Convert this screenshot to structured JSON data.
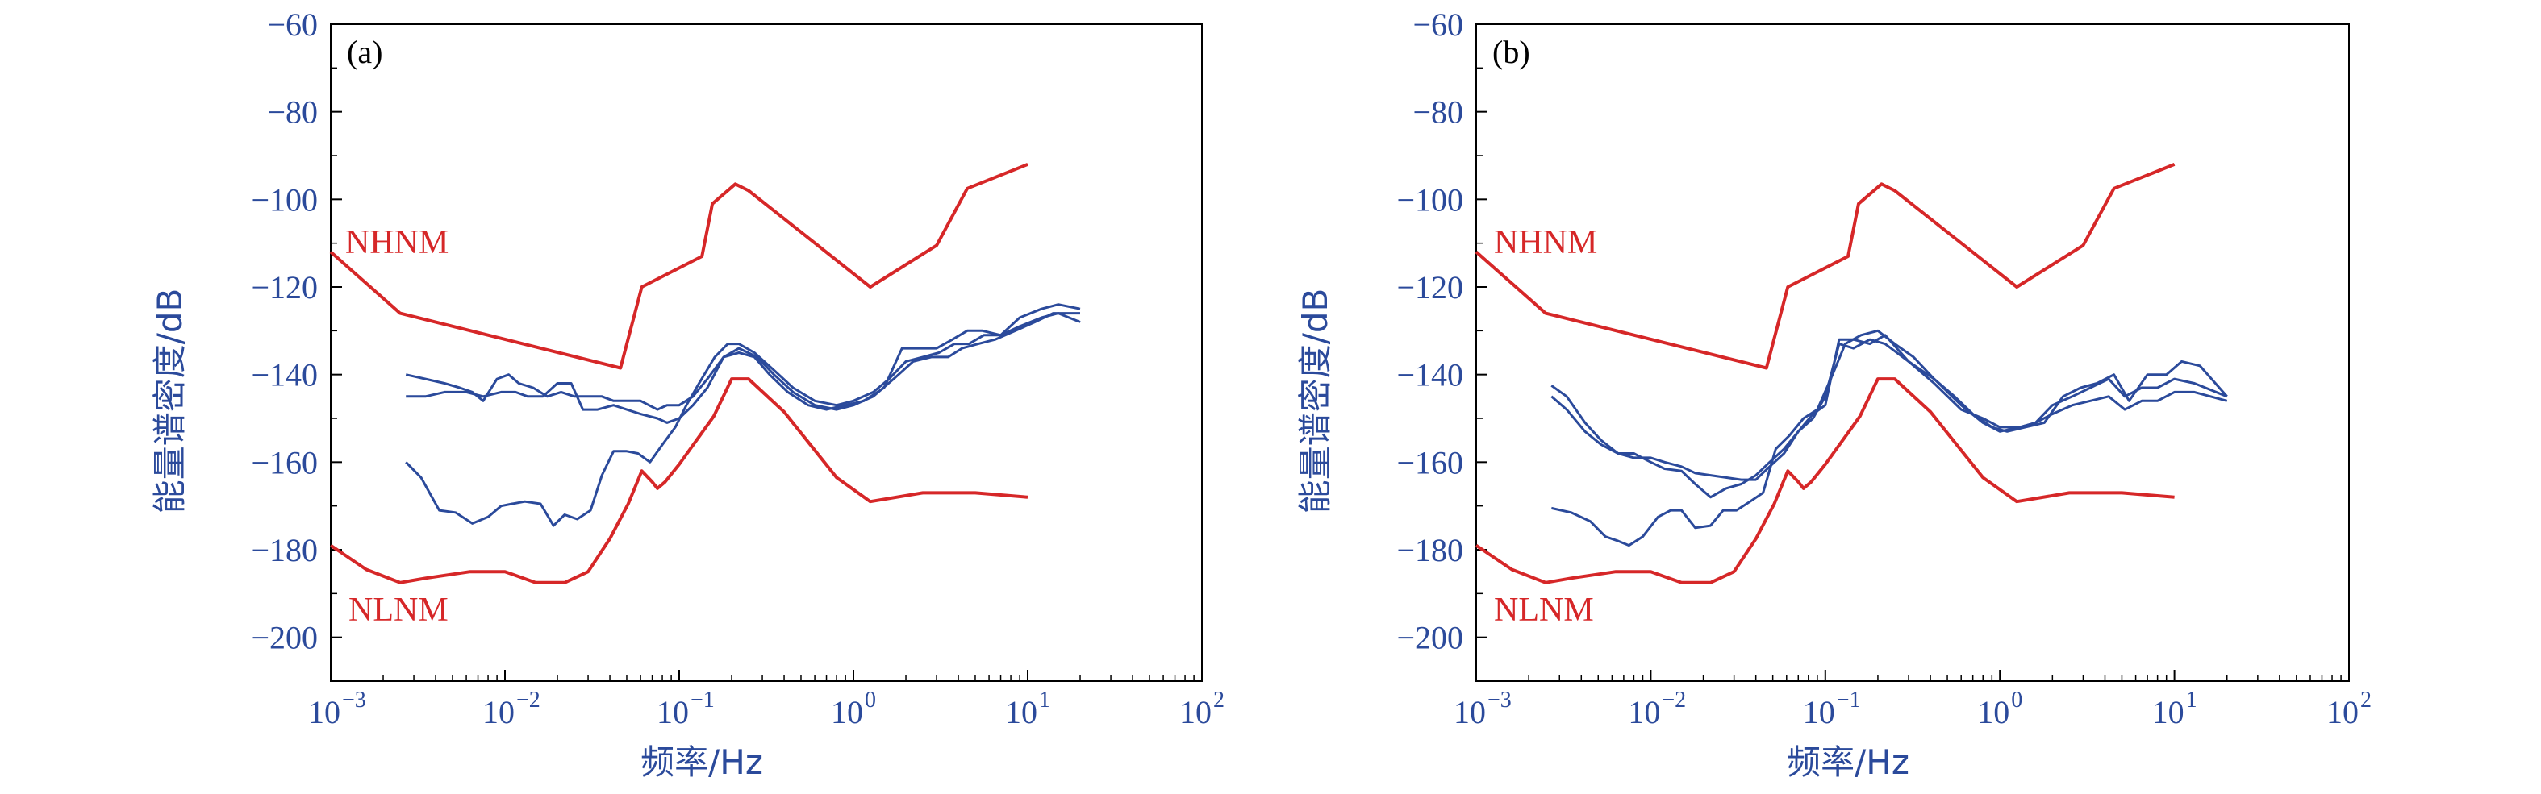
{
  "colors": {
    "model": "#d62728",
    "data": "#2b4a9b",
    "axis_text": "#2b4a9b"
  },
  "chart_data": [
    {
      "type": "line",
      "panel_label": "(a)",
      "xlabel": "频率/Hz",
      "ylabel": "能量谱密度/dB",
      "xscale": "log",
      "xlim": [
        0.001,
        100
      ],
      "ylim": [
        -210,
        -60
      ],
      "yticks": [
        "−60",
        "−80",
        "−100",
        "−120",
        "−140",
        "−160",
        "−180",
        "−200"
      ],
      "xticks": [
        {
          "base": "10",
          "exp": "−3"
        },
        {
          "base": "10",
          "exp": "−2"
        },
        {
          "base": "10",
          "exp": "−1"
        },
        {
          "base": "10",
          "exp": "0"
        },
        {
          "base": "10",
          "exp": "1"
        },
        {
          "base": "10",
          "exp": "2"
        }
      ],
      "grid": false,
      "models": [
        {
          "name": "NHNM",
          "x": [
            0.001,
            0.0025,
            0.046,
            0.061,
            0.135,
            0.155,
            0.21,
            0.25,
            1.25,
            3.0,
            4.5,
            10
          ],
          "y": [
            -112,
            -126,
            -138.5,
            -120,
            -113,
            -101,
            -96.5,
            -98,
            -120,
            -110.5,
            -97.5,
            -92
          ]
        },
        {
          "name": "NLNM",
          "x": [
            0.001,
            0.0016,
            0.0025,
            0.0035,
            0.0063,
            0.01,
            0.015,
            0.022,
            0.03,
            0.04,
            0.051,
            0.061,
            0.07,
            0.075,
            0.083,
            0.1,
            0.158,
            0.2,
            0.25,
            0.4,
            0.8,
            1.25,
            2.5,
            5,
            10
          ],
          "y": [
            -179,
            -184.5,
            -187.5,
            -186.5,
            -185,
            -185,
            -187.5,
            -187.5,
            -185,
            -177.5,
            -169.5,
            -162,
            -164.5,
            -166,
            -164.5,
            -160.5,
            -149.5,
            -141,
            -141,
            -148.5,
            -163.5,
            -169,
            -167,
            -167,
            -168
          ]
        }
      ],
      "series": [
        {
          "x": [
            0.0027,
            0.0035,
            0.0045,
            0.006,
            0.0075,
            0.0095,
            0.0115,
            0.0135,
            0.0165,
            0.02,
            0.024,
            0.028,
            0.034,
            0.042,
            0.05,
            0.06,
            0.075,
            0.085,
            0.1,
            0.12,
            0.145,
            0.18,
            0.22,
            0.27,
            0.33,
            0.42,
            0.55,
            0.7,
            0.9,
            1.15,
            1.5,
            1.9,
            2.4,
            3.0,
            3.7,
            4.5,
            5.5,
            7,
            9,
            12,
            15,
            20
          ],
          "y": [
            -145,
            -145,
            -144,
            -144,
            -145,
            -144,
            -144,
            -145,
            -145,
            -142,
            -142,
            -148,
            -148,
            -147,
            -148,
            -149,
            -150,
            -151,
            -150,
            -147,
            -143,
            -136,
            -135,
            -136,
            -140,
            -144,
            -147,
            -148,
            -147,
            -146,
            -143,
            -134,
            -134,
            -134,
            -132,
            -130,
            -130,
            -131,
            -127,
            -125,
            -124,
            -125
          ]
        },
        {
          "x": [
            0.0027,
            0.0035,
            0.0045,
            0.0055,
            0.0065,
            0.0075,
            0.009,
            0.0105,
            0.012,
            0.0145,
            0.0175,
            0.021,
            0.025,
            0.03,
            0.036,
            0.042,
            0.05,
            0.06,
            0.075,
            0.085,
            0.1,
            0.12,
            0.145,
            0.18,
            0.22,
            0.28,
            0.35,
            0.45,
            0.6,
            0.8,
            1.0,
            1.3,
            1.7,
            2.2,
            2.8,
            3.5,
            4.2,
            5.2,
            6.5,
            8.5,
            11,
            14,
            20
          ],
          "y": [
            -140,
            -141,
            -142,
            -143,
            -144,
            -146,
            -141,
            -140,
            -142,
            -143,
            -145,
            -144,
            -145,
            -145,
            -145,
            -146,
            -146,
            -146,
            -148,
            -147,
            -147,
            -145,
            -141,
            -136,
            -134,
            -136,
            -140,
            -144,
            -147,
            -148,
            -147,
            -145,
            -141,
            -137,
            -136,
            -136,
            -134,
            -133,
            -132,
            -130,
            -128,
            -126,
            -126
          ]
        },
        {
          "x": [
            0.0027,
            0.0033,
            0.0042,
            0.0052,
            0.0065,
            0.008,
            0.0095,
            0.011,
            0.013,
            0.016,
            0.019,
            0.022,
            0.026,
            0.031,
            0.036,
            0.042,
            0.05,
            0.058,
            0.068,
            0.08,
            0.095,
            0.11,
            0.13,
            0.16,
            0.19,
            0.22,
            0.27,
            0.35,
            0.45,
            0.6,
            0.8,
            1.0,
            1.3,
            1.6,
            2.0,
            2.5,
            3.1,
            3.8,
            4.6,
            5.6,
            7,
            9,
            12,
            15,
            20
          ],
          "y": [
            -160,
            -163.5,
            -171,
            -171.5,
            -174,
            -172.5,
            -170,
            -169.5,
            -169,
            -169.5,
            -174.5,
            -172,
            -173,
            -171,
            -163,
            -157.5,
            -157.5,
            -158,
            -160,
            -156,
            -152,
            -147,
            -142,
            -136,
            -133,
            -133,
            -135,
            -139,
            -143,
            -146,
            -147,
            -146,
            -144,
            -141,
            -137,
            -136,
            -135,
            -133,
            -133,
            -131,
            -131,
            -129,
            -127,
            -126,
            -128
          ]
        }
      ]
    },
    {
      "type": "line",
      "panel_label": "(b)",
      "xlabel": "频率/Hz",
      "ylabel": "能量谱密度/dB",
      "xscale": "log",
      "xlim": [
        0.001,
        100
      ],
      "ylim": [
        -210,
        -60
      ],
      "yticks": [
        "−60",
        "−80",
        "−100",
        "−120",
        "−140",
        "−160",
        "−180",
        "−200"
      ],
      "xticks": [
        {
          "base": "10",
          "exp": "−3"
        },
        {
          "base": "10",
          "exp": "−2"
        },
        {
          "base": "10",
          "exp": "−1"
        },
        {
          "base": "10",
          "exp": "0"
        },
        {
          "base": "10",
          "exp": "1"
        },
        {
          "base": "10",
          "exp": "2"
        }
      ],
      "grid": false,
      "models": [
        {
          "name": "NHNM",
          "x": [
            0.001,
            0.0025,
            0.046,
            0.061,
            0.135,
            0.155,
            0.21,
            0.25,
            1.25,
            3.0,
            4.5,
            10
          ],
          "y": [
            -112,
            -126,
            -138.5,
            -120,
            -113,
            -101,
            -96.5,
            -98,
            -120,
            -110.5,
            -97.5,
            -92
          ]
        },
        {
          "name": "NLNM",
          "x": [
            0.001,
            0.0016,
            0.0025,
            0.0035,
            0.0063,
            0.01,
            0.015,
            0.022,
            0.03,
            0.04,
            0.051,
            0.061,
            0.07,
            0.075,
            0.083,
            0.1,
            0.158,
            0.2,
            0.25,
            0.4,
            0.8,
            1.25,
            2.5,
            5,
            10
          ],
          "y": [
            -179,
            -184.5,
            -187.5,
            -186.5,
            -185,
            -185,
            -187.5,
            -187.5,
            -185,
            -177.5,
            -169.5,
            -162,
            -164.5,
            -166,
            -164.5,
            -160.5,
            -149.5,
            -141,
            -141,
            -148.5,
            -163.5,
            -169,
            -167,
            -167,
            -168
          ]
        }
      ],
      "series": [
        {
          "x": [
            0.0027,
            0.0033,
            0.0042,
            0.0052,
            0.0065,
            0.008,
            0.01,
            0.012,
            0.015,
            0.018,
            0.022,
            0.027,
            0.033,
            0.04,
            0.048,
            0.058,
            0.07,
            0.085,
            0.1,
            0.12,
            0.145,
            0.18,
            0.22,
            0.3,
            0.42,
            0.6,
            0.8,
            1.0,
            1.3,
            1.6,
            2.0,
            2.6,
            3.3,
            4.2,
            5.2,
            6.5,
            8,
            10,
            13,
            20
          ],
          "y": [
            -142.5,
            -145,
            -151,
            -155,
            -158,
            -159,
            -159,
            -160,
            -161,
            -162.5,
            -163,
            -163.5,
            -164,
            -164,
            -161,
            -158,
            -153,
            -149,
            -147,
            -132,
            -132,
            -133,
            -131,
            -137,
            -141,
            -147,
            -151,
            -153,
            -152,
            -151,
            -147,
            -145,
            -143,
            -141,
            -145,
            -143,
            -143,
            -141,
            -142,
            -145
          ]
        },
        {
          "x": [
            0.0027,
            0.0033,
            0.0042,
            0.0052,
            0.0065,
            0.008,
            0.01,
            0.012,
            0.015,
            0.018,
            0.022,
            0.027,
            0.033,
            0.04,
            0.048,
            0.058,
            0.07,
            0.085,
            0.1,
            0.12,
            0.145,
            0.18,
            0.22,
            0.3,
            0.42,
            0.6,
            0.8,
            1.0,
            1.3,
            1.6,
            2.0,
            2.6,
            3.3,
            4.2,
            5.2,
            6.5,
            8,
            10,
            13,
            20
          ],
          "y": [
            -145,
            -148,
            -153,
            -156,
            -158,
            -158,
            -160,
            -161.5,
            -162,
            -165,
            -168,
            -166,
            -165,
            -163,
            -160,
            -157,
            -153,
            -150,
            -145,
            -133,
            -134,
            -132,
            -133,
            -137,
            -142,
            -148,
            -150,
            -152,
            -152,
            -151,
            -149,
            -147,
            -146,
            -145,
            -148,
            -146,
            -146,
            -144,
            -144,
            -146
          ]
        },
        {
          "x": [
            0.0027,
            0.0035,
            0.0045,
            0.0055,
            0.0065,
            0.0075,
            0.009,
            0.011,
            0.013,
            0.015,
            0.018,
            0.022,
            0.026,
            0.031,
            0.037,
            0.044,
            0.052,
            0.062,
            0.075,
            0.09,
            0.11,
            0.13,
            0.16,
            0.2,
            0.25,
            0.32,
            0.42,
            0.55,
            0.7,
            0.9,
            1.1,
            1.4,
            1.8,
            2.3,
            2.9,
            3.6,
            4.5,
            5.5,
            7,
            9,
            11,
            14,
            20
          ],
          "y": [
            -170.5,
            -171.5,
            -173.5,
            -177,
            -178,
            -179,
            -177,
            -172.5,
            -171,
            -171,
            -175,
            -174.5,
            -171,
            -171,
            -169,
            -167,
            -157,
            -154,
            -150,
            -148,
            -140,
            -133,
            -131,
            -130,
            -133,
            -136,
            -141,
            -145,
            -149,
            -152,
            -153,
            -152,
            -151,
            -145,
            -143,
            -142,
            -140,
            -146,
            -140,
            -140,
            -137,
            -138,
            -145
          ]
        }
      ]
    }
  ]
}
